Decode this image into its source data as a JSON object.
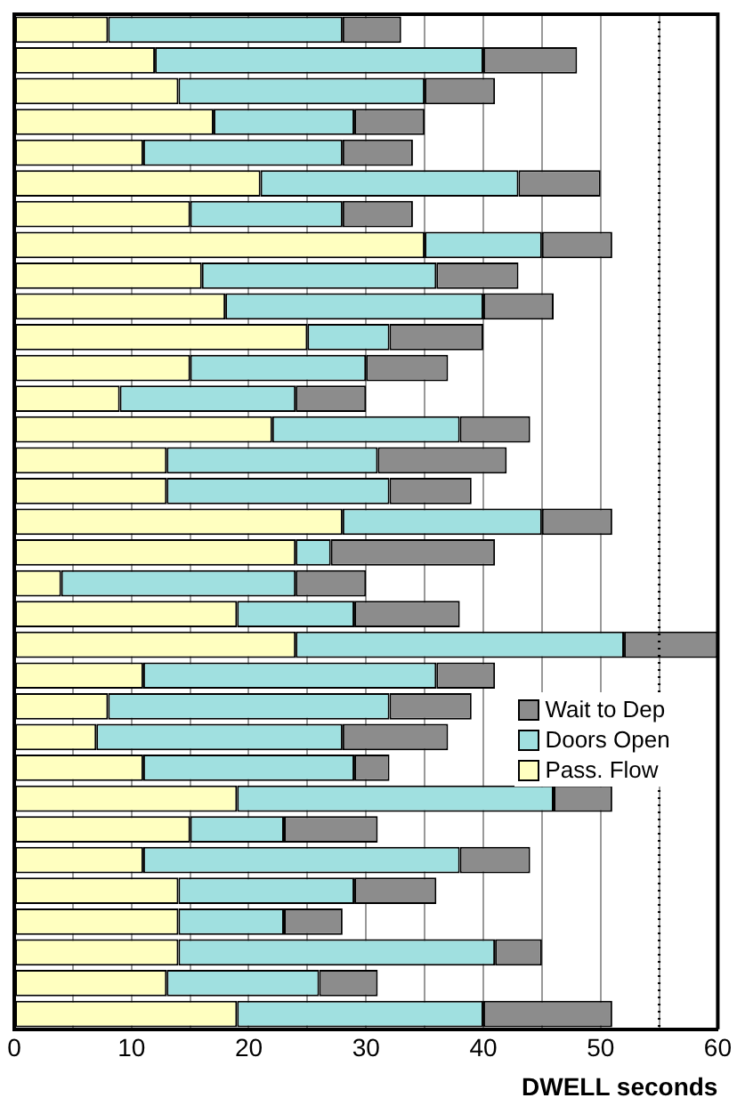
{
  "chart_data": {
    "type": "bar",
    "orientation": "horizontal",
    "stacked": true,
    "xlabel": "DWELL seconds",
    "categories": [
      null,
      null,
      null,
      null,
      null,
      null,
      null,
      null,
      null,
      null,
      null,
      null,
      null,
      null,
      null,
      null,
      null,
      null,
      null,
      null,
      null,
      null,
      null,
      null,
      null,
      null,
      null,
      null,
      null,
      null,
      null,
      null,
      null
    ],
    "series": [
      {
        "name": "Pass. Flow",
        "color": "#ffffc0",
        "values": [
          8,
          12,
          14,
          17,
          11,
          21,
          15,
          35,
          16,
          18,
          25,
          15,
          9,
          22,
          13,
          13,
          28,
          24,
          4,
          19,
          24,
          11,
          8,
          7,
          11,
          19,
          15,
          11,
          14,
          14,
          14,
          13,
          19
        ]
      },
      {
        "name": "Doors Open",
        "color": "#a0e0e0",
        "values": [
          20,
          28,
          21,
          12,
          17,
          22,
          13,
          10,
          20,
          22,
          7,
          15,
          15,
          16,
          18,
          19,
          17,
          3,
          20,
          10,
          28,
          25,
          24,
          21,
          18,
          27,
          8,
          27,
          15,
          9,
          27,
          13,
          21
        ]
      },
      {
        "name": "Wait to Dep",
        "color": "#8c8c8c",
        "values": [
          5,
          8,
          6,
          6,
          6,
          7,
          6,
          6,
          7,
          6,
          8,
          7,
          6,
          6,
          11,
          7,
          6,
          14,
          6,
          9,
          8,
          5,
          7,
          9,
          3,
          5,
          8,
          6,
          7,
          5,
          4,
          5,
          11
        ]
      }
    ],
    "xlim": [
      0,
      60
    ],
    "xticks": [
      0,
      {
        "value": 5,
        "label": null
      },
      10,
      {
        "value": 15,
        "label": null
      },
      20,
      {
        "value": 25,
        "label": null
      },
      30,
      {
        "value": 35,
        "label": null
      },
      40,
      {
        "value": 45,
        "label": null
      },
      50,
      {
        "value": 55,
        "label": null
      },
      60
    ],
    "grid": "x",
    "legend": "right",
    "ref_lines": [
      {
        "axis": "x",
        "value": 55,
        "color": "#000000",
        "line_style": "dotted"
      }
    ]
  }
}
